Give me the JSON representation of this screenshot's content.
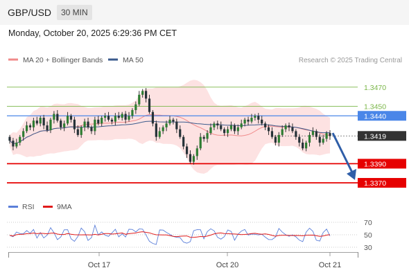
{
  "header": {
    "symbol": "GBP/USD",
    "timeframe": "30 MIN",
    "datetime": "Monday, October 20, 2025 6:29:36 PM CET"
  },
  "colors": {
    "bollinger": "#f08a8a",
    "ma50": "#3a5a8c",
    "rsi": "#5b7fd9",
    "rsi_ma": "#e01a1a",
    "green": "#7ab648",
    "blue": "#4a86e8",
    "red": "#e60000",
    "dark": "#333333",
    "candle": "#2e7d32"
  },
  "chart_data": {
    "type": "candlestick",
    "legend": [
      {
        "name": "MA 20 + Bollinger Bands",
        "color": "#f08a8a"
      },
      {
        "name": "MA 50",
        "color": "#3a5a8c"
      }
    ],
    "watermark": "Research © 2025 Trading Central",
    "ylim": [
      1.3357,
      1.3493
    ],
    "levels": [
      {
        "value": 1.347,
        "label": "1.3470",
        "kind": "resistance-green"
      },
      {
        "value": 1.345,
        "label": "1.3450",
        "kind": "resistance-green"
      },
      {
        "value": 1.344,
        "label": "1.3440",
        "kind": "resistance-blue"
      },
      {
        "value": 1.3419,
        "label": "1.3419",
        "kind": "current-price"
      },
      {
        "value": 1.339,
        "label": "1.3390",
        "kind": "support-red"
      },
      {
        "value": 1.337,
        "label": "1.3370",
        "kind": "support-red"
      }
    ],
    "arrow": {
      "from_value": 1.3422,
      "to_value": 1.3373,
      "direction": "down"
    },
    "x_ticks": [
      "Oct 17",
      "Oct 20",
      "Oct 21"
    ],
    "close": [
      1.3414,
      1.3408,
      1.3412,
      1.3418,
      1.3424,
      1.343,
      1.3428,
      1.3435,
      1.3432,
      1.3438,
      1.343,
      1.3425,
      1.3436,
      1.3442,
      1.3435,
      1.3428,
      1.3432,
      1.344,
      1.3436,
      1.3426,
      1.342,
      1.3428,
      1.3434,
      1.3428,
      1.3424,
      1.3436,
      1.3432,
      1.3438,
      1.344,
      1.3436,
      1.3434,
      1.344,
      1.3438,
      1.3442,
      1.3436,
      1.344,
      1.3446,
      1.3452,
      1.3462,
      1.3466,
      1.3458,
      1.3444,
      1.3432,
      1.3418,
      1.3424,
      1.3428,
      1.3432,
      1.3436,
      1.3434,
      1.3426,
      1.3418,
      1.3408,
      1.34,
      1.3392,
      1.3398,
      1.3406,
      1.3418,
      1.3416,
      1.3422,
      1.3428,
      1.3432,
      1.343,
      1.3426,
      1.3422,
      1.3426,
      1.343,
      1.3424,
      1.3428,
      1.3432,
      1.3436,
      1.3434,
      1.3438,
      1.344,
      1.3436,
      1.3432,
      1.3428,
      1.3424,
      1.3418,
      1.3412,
      1.342,
      1.3426,
      1.343,
      1.3428,
      1.3424,
      1.3418,
      1.3412,
      1.3406,
      1.3412,
      1.342,
      1.3424,
      1.3418,
      1.3412,
      1.3416,
      1.3422,
      1.3419
    ],
    "rsi_axis": {
      "ticks": [
        70,
        50,
        30
      ],
      "ylim": [
        20,
        80
      ]
    },
    "rsi_legend": [
      {
        "name": "RSI",
        "color": "#5b7fd9"
      },
      {
        "name": "9MA",
        "color": "#e01a1a"
      }
    ]
  }
}
